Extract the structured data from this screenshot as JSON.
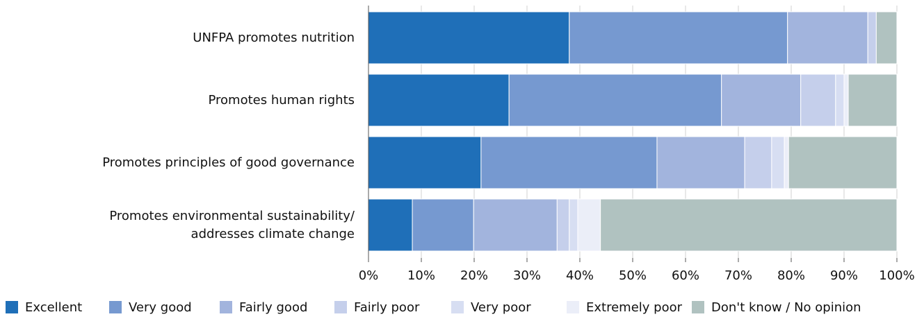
{
  "chart_data": {
    "type": "stacked_barh",
    "categories": [
      "UNFPA promotes nutrition",
      "Promotes human rights",
      "Promotes principles of good governance",
      "Promotes environmental sustainability/\naddresses climate change"
    ],
    "series": [
      {
        "name": "Excellent",
        "color": "#1f6fb8",
        "values": [
          38.0,
          26.6,
          21.3,
          8.3
        ]
      },
      {
        "name": "Very good",
        "color": "#7699d0",
        "values": [
          41.3,
          40.2,
          33.3,
          11.6
        ]
      },
      {
        "name": "Fairly good",
        "color": "#a2b4dd",
        "values": [
          15.2,
          15.0,
          16.6,
          15.8
        ]
      },
      {
        "name": "Fairly poor",
        "color": "#c5cfeb",
        "values": [
          1.6,
          6.6,
          5.1,
          2.3
        ]
      },
      {
        "name": "Very poor",
        "color": "#d7def2",
        "values": [
          0,
          1.6,
          2.4,
          1.6
        ]
      },
      {
        "name": "Extremely poor",
        "color": "#ebeef8",
        "values": [
          0,
          0.8,
          0.8,
          4.3
        ]
      },
      {
        "name": "Don't know / No opinion",
        "color": "#b0c2c0",
        "values": [
          3.9,
          9.2,
          20.5,
          56.1
        ]
      }
    ],
    "xlim": [
      0,
      100
    ],
    "xticks": [
      {
        "value": 0,
        "label": "0%"
      },
      {
        "value": 10,
        "label": "10%"
      },
      {
        "value": 20,
        "label": "20%"
      },
      {
        "value": 30,
        "label": "30%"
      },
      {
        "value": 40,
        "label": "40%"
      },
      {
        "value": 50,
        "label": "50%"
      },
      {
        "value": 60,
        "label": "60%"
      },
      {
        "value": 70,
        "label": "70%"
      },
      {
        "value": 80,
        "label": "80%"
      },
      {
        "value": 90,
        "label": "90%"
      },
      {
        "value": 100,
        "label": "100%"
      }
    ],
    "grid": true
  }
}
